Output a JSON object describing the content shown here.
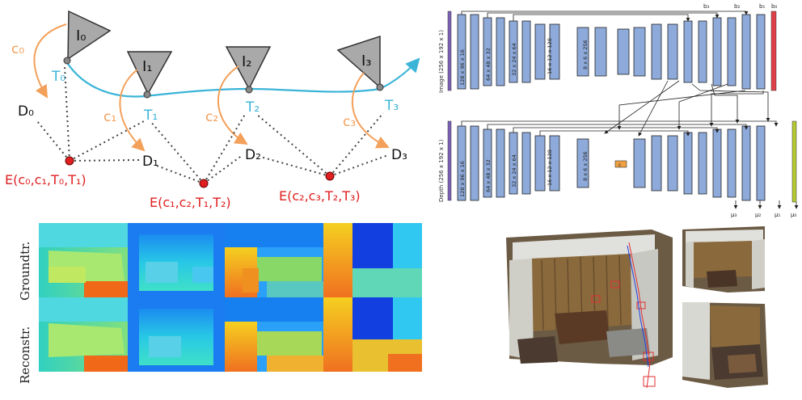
{
  "trajectory": {
    "frames": [
      "I₀",
      "I₁",
      "I₂",
      "I₃"
    ],
    "poses": [
      "T₀",
      "T₁",
      "T₂",
      "T₃"
    ],
    "codes": [
      "c₀",
      "c₁",
      "c₂",
      "c₃"
    ],
    "depths": [
      "D₀",
      "D₁",
      "D₂",
      "D₃"
    ],
    "energies": [
      "E(c₀,c₁,T₀,T₁)",
      "E(c₁,c₂,T₁,T₂)",
      "E(c₂,c₃,T₂,T₃)"
    ],
    "colors": {
      "pose_curve": "#3bb4d8",
      "code_arrow": "#f3a05a",
      "energy": "#e02020",
      "camera": "#a9a9a9"
    }
  },
  "network": {
    "image_label": "Image (256 x 192 x 1)",
    "depth_label": "Depth (256 x 192 x 1)",
    "block_labels": [
      "128 x 96 x 16",
      "64 x 48 x 32",
      "32 x 24 x 64",
      "16 x 12 x 128",
      "8 x 6 x 256"
    ],
    "code_label": "c",
    "bias_labels": [
      "b₃",
      "b₂",
      "b₁",
      "b₀"
    ],
    "output_labels": [
      "μ₃",
      "μ₂",
      "μ₁",
      "μ₀"
    ],
    "colors": {
      "block": "#8eaadb",
      "image_bar": "#7d62b8",
      "bias_out": "#e0404a",
      "depth_out": "#b5c933",
      "code": "#f0a040"
    }
  },
  "depth_grid": {
    "row_labels": [
      "Groundtr.",
      "Reconstr."
    ]
  },
  "reconstruction": {
    "views": 3
  }
}
